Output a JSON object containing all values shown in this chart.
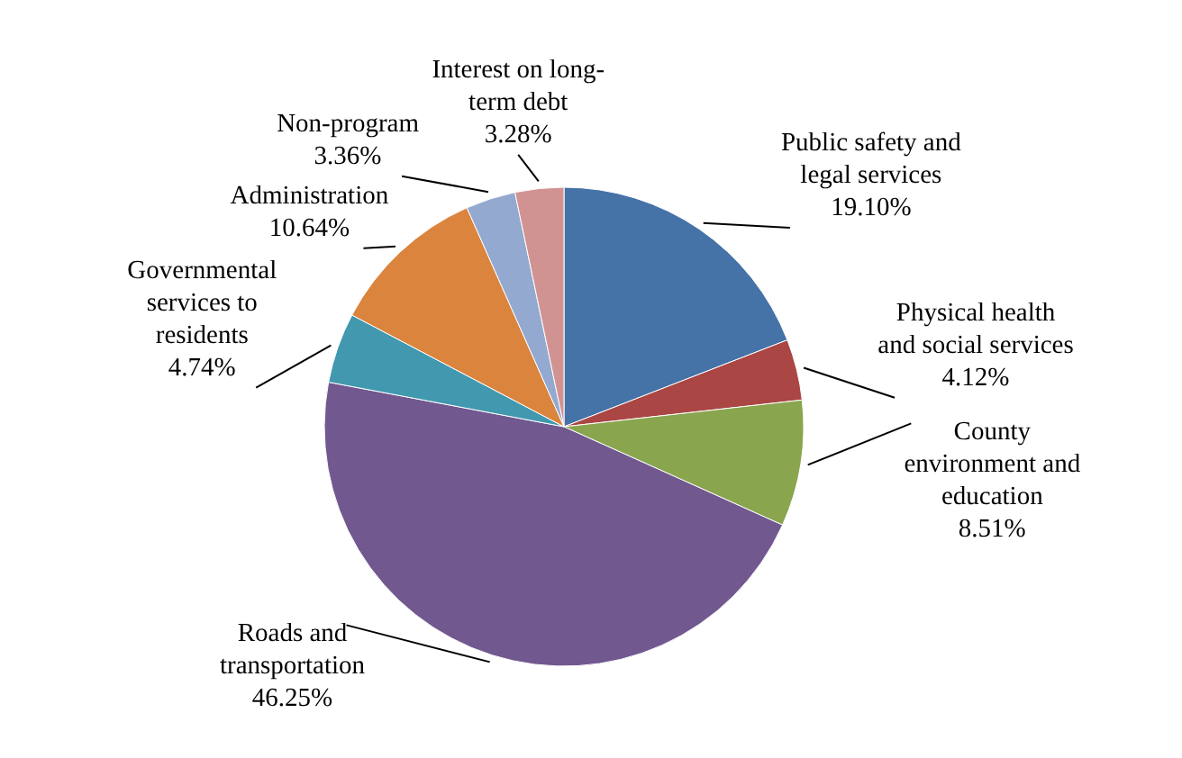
{
  "chart_data": {
    "type": "pie",
    "categories": [
      "Public safety and\nlegal services",
      "Physical health\nand social services",
      "County\nenvironment and\neducation",
      "Roads and\ntransportation",
      "Governmental\nservices to\nresidents",
      "Administration",
      "Non-program",
      "Interest on long-\nterm debt"
    ],
    "values": [
      19.1,
      4.12,
      8.51,
      46.25,
      4.74,
      10.64,
      3.36,
      3.28
    ],
    "value_labels": [
      "19.10%",
      "4.12%",
      "8.51%",
      "46.25%",
      "4.74%",
      "10.64%",
      "3.36%",
      "3.28%"
    ],
    "colors": [
      "#4572a7",
      "#aa4643",
      "#89a54e",
      "#71588f",
      "#4198af",
      "#db843d",
      "#93a9cf",
      "#d19392"
    ]
  }
}
